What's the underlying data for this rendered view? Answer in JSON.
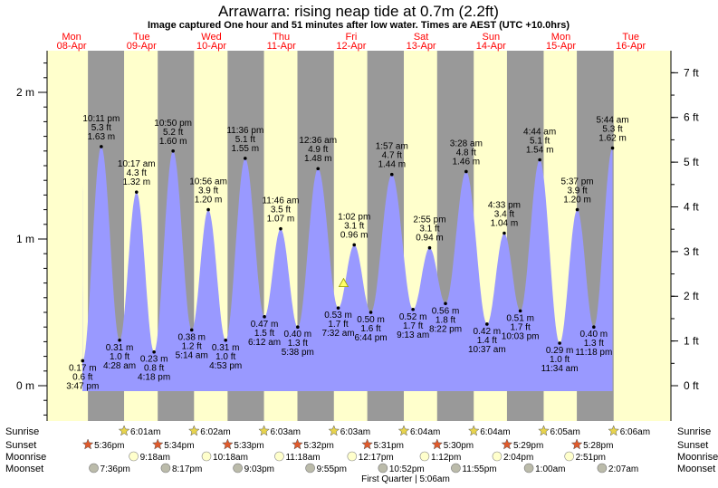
{
  "title": "Arrawarra: rising  neap tide at 0.7m (2.2ft)",
  "subtitle": "Image captured One hour and 51 minutes after low water. Times are AEST (UTC +10.0hrs)",
  "chart_data": {
    "type": "area",
    "series": [
      {
        "values": []
      }
    ],
    "ylim": [
      -0.25,
      2.25
    ],
    "y_ticks_m": [
      "0 m",
      "1 m",
      "2 m"
    ],
    "y_ticks_ft": [
      "0 ft",
      "1 ft",
      "2 ft",
      "3 ft",
      "4 ft",
      "5 ft",
      "6 ft",
      "7 ft"
    ],
    "days": [
      {
        "dow": "Mon",
        "date": "08-Apr"
      },
      {
        "dow": "Tue",
        "date": "09-Apr"
      },
      {
        "dow": "Wed",
        "date": "10-Apr"
      },
      {
        "dow": "Thu",
        "date": "11-Apr"
      },
      {
        "dow": "Fri",
        "date": "12-Apr"
      },
      {
        "dow": "Sat",
        "date": "13-Apr"
      },
      {
        "dow": "Sun",
        "date": "14-Apr"
      },
      {
        "dow": "Mon",
        "date": "15-Apr"
      },
      {
        "dow": "Tue",
        "date": "16-Apr"
      }
    ],
    "extremes": [
      {
        "time": "3:47 pm",
        "ft": "0.6 ft",
        "m": "0.17 m",
        "height": 0.17,
        "type": "low"
      },
      {
        "time": "10:11 pm",
        "ft": "5.3 ft",
        "m": "1.63 m",
        "height": 1.63,
        "type": "high"
      },
      {
        "time": "4:28 am",
        "ft": "1.0 ft",
        "m": "0.31 m",
        "height": 0.31,
        "type": "low"
      },
      {
        "time": "10:17 am",
        "ft": "4.3 ft",
        "m": "1.32 m",
        "height": 1.32,
        "type": "high"
      },
      {
        "time": "4:18 pm",
        "ft": "0.8 ft",
        "m": "0.23 m",
        "height": 0.23,
        "type": "low"
      },
      {
        "time": "10:50 pm",
        "ft": "5.2 ft",
        "m": "1.60 m",
        "height": 1.6,
        "type": "high"
      },
      {
        "time": "5:14 am",
        "ft": "1.2 ft",
        "m": "0.38 m",
        "height": 0.38,
        "type": "low"
      },
      {
        "time": "10:56 am",
        "ft": "3.9 ft",
        "m": "1.20 m",
        "height": 1.2,
        "type": "high"
      },
      {
        "time": "4:53 pm",
        "ft": "1.0 ft",
        "m": "0.31 m",
        "height": 0.31,
        "type": "low"
      },
      {
        "time": "11:36 pm",
        "ft": "5.1 ft",
        "m": "1.55 m",
        "height": 1.55,
        "type": "high"
      },
      {
        "time": "6:12 am",
        "ft": "1.5 ft",
        "m": "0.47 m",
        "height": 0.47,
        "type": "low"
      },
      {
        "time": "11:46 am",
        "ft": "3.5 ft",
        "m": "1.07 m",
        "height": 1.07,
        "type": "high"
      },
      {
        "time": "5:38 pm",
        "ft": "1.3 ft",
        "m": "0.40 m",
        "height": 0.4,
        "type": "low"
      },
      {
        "time": "12:36 am",
        "ft": "4.9 ft",
        "m": "1.48 m",
        "height": 1.48,
        "type": "high"
      },
      {
        "time": "7:32 am",
        "ft": "1.7 ft",
        "m": "0.53 m",
        "height": 0.53,
        "type": "low"
      },
      {
        "time": "1:02 pm",
        "ft": "3.1 ft",
        "m": "0.96 m",
        "height": 0.96,
        "type": "high"
      },
      {
        "time": "6:44 pm",
        "ft": "1.6 ft",
        "m": "0.50 m",
        "height": 0.5,
        "type": "low"
      },
      {
        "time": "1:57 am",
        "ft": "4.7 ft",
        "m": "1.44 m",
        "height": 1.44,
        "type": "high"
      },
      {
        "time": "9:13 am",
        "ft": "1.7 ft",
        "m": "0.52 m",
        "height": 0.52,
        "type": "low"
      },
      {
        "time": "2:55 pm",
        "ft": "3.1 ft",
        "m": "0.94 m",
        "height": 0.94,
        "type": "high"
      },
      {
        "time": "8:22 pm",
        "ft": "1.8 ft",
        "m": "0.56 m",
        "height": 0.56,
        "type": "low"
      },
      {
        "time": "3:28 am",
        "ft": "4.8 ft",
        "m": "1.46 m",
        "height": 1.46,
        "type": "high"
      },
      {
        "time": "10:37 am",
        "ft": "1.4 ft",
        "m": "0.42 m",
        "height": 0.42,
        "type": "low"
      },
      {
        "time": "4:33 pm",
        "ft": "3.4 ft",
        "m": "1.04 m",
        "height": 1.04,
        "type": "high"
      },
      {
        "time": "10:03 pm",
        "ft": "1.7 ft",
        "m": "0.51 m",
        "height": 0.51,
        "type": "low"
      },
      {
        "time": "4:44 am",
        "ft": "5.1 ft",
        "m": "1.54 m",
        "height": 1.54,
        "type": "high"
      },
      {
        "time": "11:34 am",
        "ft": "1.0 ft",
        "m": "0.29 m",
        "height": 0.29,
        "type": "low"
      },
      {
        "time": "5:37 pm",
        "ft": "3.9 ft",
        "m": "1.20 m",
        "height": 1.2,
        "type": "high"
      },
      {
        "time": "11:18 pm",
        "ft": "1.3 ft",
        "m": "0.40 m",
        "height": 0.4,
        "type": "low"
      },
      {
        "time": "5:44 am",
        "ft": "5.3 ft",
        "m": "1.62 m",
        "height": 1.62,
        "type": "high"
      }
    ],
    "current_level_m": 0.7,
    "sunrise": [
      "6:01am",
      "6:02am",
      "6:03am",
      "6:03am",
      "6:04am",
      "6:04am",
      "6:05am",
      "6:06am"
    ],
    "sunset": [
      "5:36pm",
      "5:34pm",
      "5:33pm",
      "5:32pm",
      "5:31pm",
      "5:30pm",
      "5:29pm",
      "5:28pm"
    ],
    "moonrise": [
      "9:18am",
      "10:18am",
      "11:18am",
      "12:17pm",
      "1:12pm",
      "2:04pm",
      "2:51pm"
    ],
    "moonset": [
      "7:36pm",
      "8:17pm",
      "9:03pm",
      "9:55pm",
      "10:52pm",
      "11:55pm",
      "1:00am",
      "2:07am"
    ],
    "moon_phase": "First Quarter | 5:06am"
  },
  "row_labels": {
    "sunrise": "Sunrise",
    "sunset": "Sunset",
    "moonrise": "Moonrise",
    "moonset": "Moonset"
  },
  "colors": {
    "day": "#ffffcc",
    "night": "#999999",
    "tide": "#9999ff",
    "day_label": "#ff0000",
    "sun_star": "#e8d44d",
    "sunset_star": "#e05a2b",
    "moonrise": "#ffffcc",
    "moonset": "#bbbbaa"
  }
}
